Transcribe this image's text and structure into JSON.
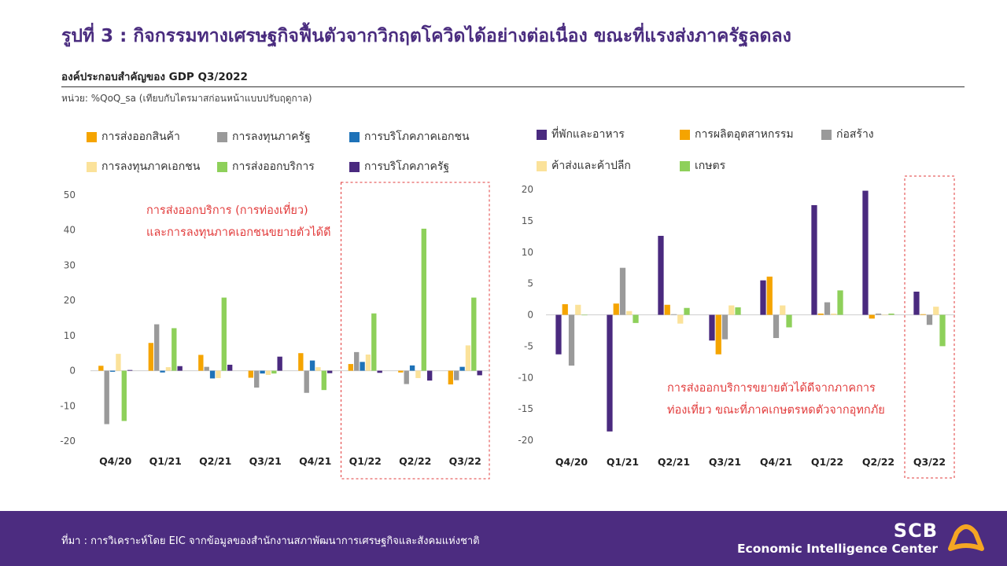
{
  "title": "รูปที่ 3 : กิจกรรมทางเศรษฐกิจฟื้นตัวจากวิกฤตโควิดได้อย่างต่อเนื่อง  ขณะที่แรงส่งภาครัฐลดลง",
  "subtitle": "องค์ประกอบสำคัญของ GDP  Q3/2022",
  "unit": "หน่วย: %QoQ_sa  (เทียบกับไตรมาสก่อนหน้าแบบปรับฤดูกาล)",
  "left_annotation": [
    "การส่งออกบริการ (การท่องเที่ยว)",
    "และการลงทุนภาคเอกชนขยายตัวได้ดี"
  ],
  "right_annotation": [
    "การส่งออกบริการขยายตัวได้ดีจากภาคการ",
    "ท่องเที่ยว ขณะที่ภาคเกษตรหดตัวจากอุทกภัย"
  ],
  "footer": {
    "source": "ที่มา : การวิเคราะห์โดย EIC จากข้อมูลของสำนักงานสภาพัฒนาการเศรษฐกิจและสังคมแห่งชาติ",
    "brand_name": "SCB",
    "brand_unit": "Economic Intelligence Center"
  },
  "colors": {
    "title": "#4a2c7f",
    "annotation": "#e23b3b",
    "footer_bg": "#4c2c80",
    "logo": "#f5a623"
  },
  "chart_data": [
    {
      "type": "bar",
      "categories": [
        "Q4/20",
        "Q1/21",
        "Q2/21",
        "Q3/21",
        "Q4/21",
        "Q1/22",
        "Q2/22",
        "Q3/22"
      ],
      "ylim": [
        -20,
        50
      ],
      "yticks": [
        -20,
        -10,
        0,
        10,
        20,
        30,
        40,
        50
      ],
      "highlight_categories": [
        "Q1/22",
        "Q2/22",
        "Q3/22"
      ],
      "series": [
        {
          "name": "การส่งออกสินค้า",
          "color": "#f5a400",
          "values": [
            1.4,
            7.9,
            4.5,
            -2.0,
            5.0,
            1.9,
            -0.5,
            -3.9
          ]
        },
        {
          "name": "การลงทุนภาครัฐ",
          "color": "#9a9a9a",
          "values": [
            -15.2,
            13.2,
            1.1,
            -4.8,
            -6.3,
            5.3,
            -3.8,
            -2.7
          ]
        },
        {
          "name": "การบริโภคภาคเอกชน",
          "color": "#1e72b8",
          "values": [
            -0.3,
            -0.5,
            -2.2,
            -0.8,
            2.9,
            2.5,
            1.5,
            1.1
          ]
        },
        {
          "name": "การลงทุนภาคเอกชน",
          "color": "#fbe29a",
          "values": [
            4.8,
            1.0,
            -2.1,
            -1.2,
            1.0,
            4.6,
            -2.1,
            7.2
          ]
        },
        {
          "name": "การส่งออกบริการ",
          "color": "#8ed05a",
          "values": [
            -14.3,
            12.1,
            20.8,
            -0.8,
            -5.5,
            16.3,
            40.4,
            20.8
          ]
        },
        {
          "name": "การบริโภคภาครัฐ",
          "color": "#4a2a7f",
          "values": [
            0.2,
            1.3,
            1.7,
            4.0,
            -0.7,
            -0.6,
            -2.8,
            -1.3
          ]
        }
      ]
    },
    {
      "type": "bar",
      "categories": [
        "Q4/20",
        "Q1/21",
        "Q2/21",
        "Q3/21",
        "Q4/21",
        "Q1/22",
        "Q2/22",
        "Q3/22"
      ],
      "ylim": [
        -20,
        20
      ],
      "yticks": [
        -20,
        -15,
        -10,
        -5,
        0,
        5,
        10,
        15,
        20
      ],
      "highlight_categories": [
        "Q3/22"
      ],
      "series": [
        {
          "name": "ที่พักและอาหาร",
          "color": "#4a2a7f",
          "values": [
            -6.3,
            -18.6,
            12.6,
            -4.1,
            5.5,
            17.5,
            19.8,
            3.7
          ]
        },
        {
          "name": "การผลิตอุตสาหกรรม",
          "color": "#f5a400",
          "values": [
            1.7,
            1.8,
            1.6,
            -6.3,
            6.1,
            0.2,
            -0.6,
            0.1
          ]
        },
        {
          "name": "ก่อสร้าง",
          "color": "#9a9a9a",
          "values": [
            -8.1,
            7.5,
            0.1,
            -3.9,
            -3.7,
            2.0,
            0.2,
            -1.6
          ]
        },
        {
          "name": "ค้าส่งและค้าปลีก",
          "color": "#fbe29a",
          "values": [
            1.6,
            0.6,
            -1.4,
            1.5,
            1.5,
            0.2,
            0.0,
            1.3
          ]
        },
        {
          "name": "เกษตร",
          "color": "#8ed05a",
          "values": [
            0.0,
            -1.3,
            1.1,
            1.2,
            -2.0,
            3.9,
            0.2,
            -5.0
          ]
        }
      ]
    }
  ]
}
